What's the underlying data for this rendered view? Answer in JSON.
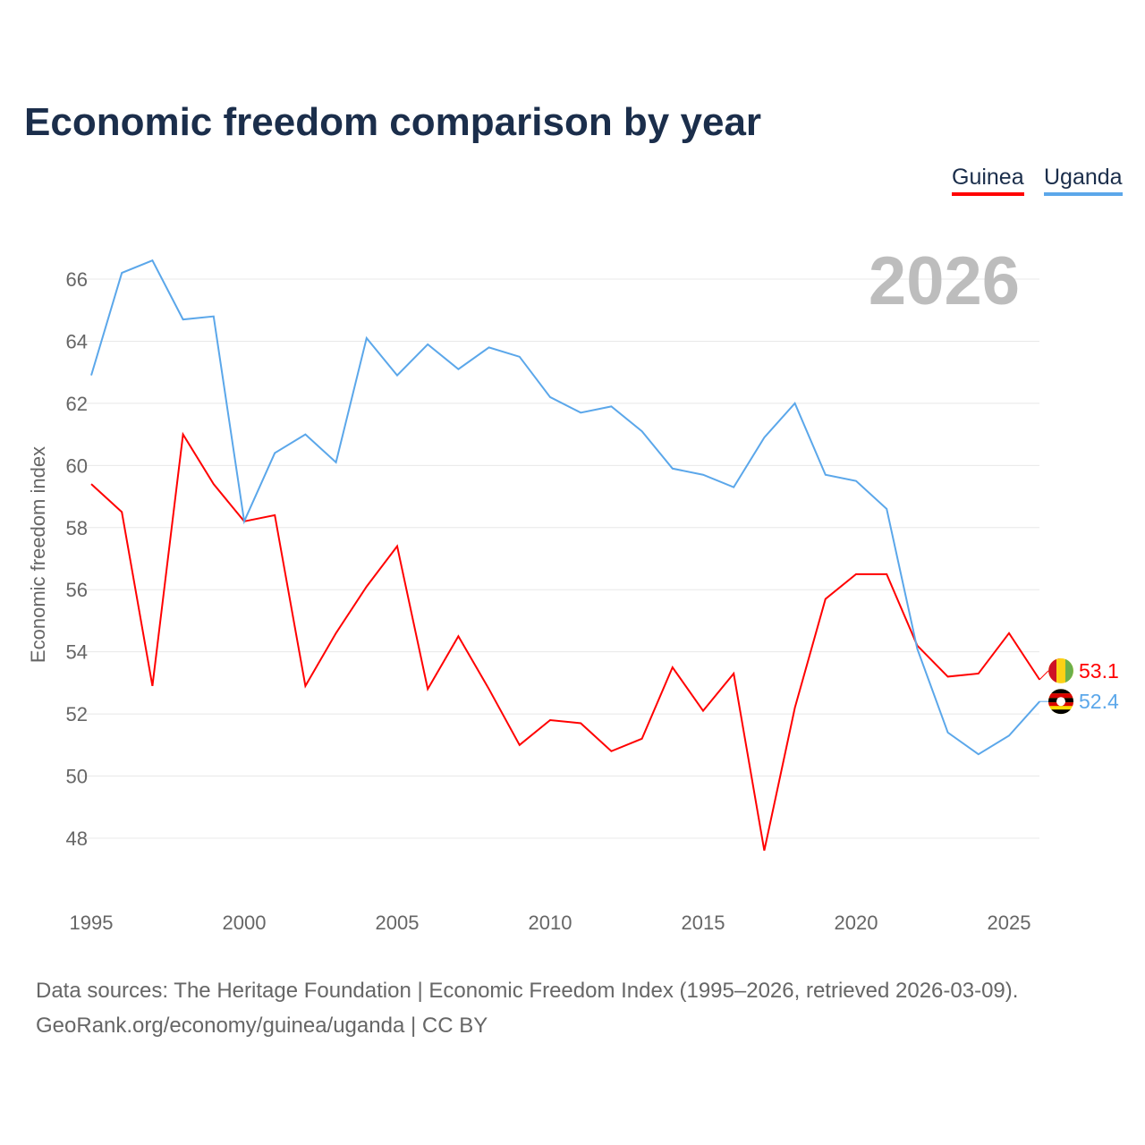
{
  "title": "Economic freedom comparison by year",
  "source_line1": "Data sources: The Heritage Foundation | Economic Freedom Index (1995–2026, retrieved 2026-03-09).",
  "source_line2": "GeoRank.org/economy/guinea/uganda | CC BY",
  "chart_data": {
    "type": "line",
    "title": "Economic freedom comparison by year",
    "ylabel": "Economic freedom index",
    "xlabel": "",
    "year_watermark": "2026",
    "x": [
      1995,
      1996,
      1997,
      1998,
      1999,
      2000,
      2001,
      2002,
      2003,
      2004,
      2005,
      2006,
      2007,
      2008,
      2009,
      2010,
      2011,
      2012,
      2013,
      2014,
      2015,
      2016,
      2017,
      2018,
      2019,
      2020,
      2021,
      2022,
      2023,
      2024,
      2025,
      2026
    ],
    "xticks": [
      "1995",
      "2000",
      "2005",
      "2010",
      "2015",
      "2020",
      "2025"
    ],
    "yticks": [
      "48",
      "50",
      "52",
      "54",
      "56",
      "58",
      "60",
      "62",
      "64",
      "66"
    ],
    "ylim": [
      46.5,
      68
    ],
    "legend_position": "top-right",
    "grid": true,
    "series": [
      {
        "name": "Guinea",
        "color": "#ff0000",
        "end_label": "53.1",
        "values": [
          59.4,
          58.5,
          52.9,
          61.0,
          59.4,
          58.2,
          58.4,
          52.9,
          54.6,
          56.1,
          57.4,
          52.8,
          54.5,
          52.8,
          51.0,
          51.8,
          51.7,
          50.8,
          51.2,
          53.5,
          52.1,
          53.3,
          47.6,
          52.2,
          55.7,
          56.5,
          56.5,
          54.2,
          53.2,
          53.3,
          54.6,
          53.1
        ]
      },
      {
        "name": "Uganda",
        "color": "#5ba7ea",
        "end_label": "52.4",
        "values": [
          62.9,
          66.2,
          66.6,
          64.7,
          64.8,
          58.2,
          60.4,
          61.0,
          60.1,
          64.1,
          62.9,
          63.9,
          63.1,
          63.8,
          63.5,
          62.2,
          61.7,
          61.9,
          61.1,
          59.9,
          59.7,
          59.3,
          60.9,
          62.0,
          59.7,
          59.5,
          58.6,
          54.1,
          51.4,
          50.7,
          51.3,
          52.4
        ]
      }
    ]
  }
}
